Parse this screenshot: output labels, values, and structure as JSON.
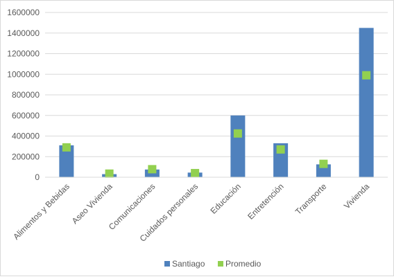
{
  "chart_data": {
    "type": "bar",
    "title": "",
    "xlabel": "",
    "ylabel": "",
    "categories": [
      "Alimentos y Bebidas",
      "Aseo Vivienda",
      "Comunicaciones",
      "Cuidados personales",
      "Educación",
      "Entretención",
      "Transporte",
      "Vivienda"
    ],
    "series": [
      {
        "name": "Santiago",
        "type": "bar",
        "color": "#4f81bd",
        "values": [
          310000,
          30000,
          75000,
          45000,
          600000,
          330000,
          125000,
          1450000
        ]
      },
      {
        "name": "Promedio",
        "type": "marker",
        "color": "#92d050",
        "values": [
          290000,
          35000,
          78000,
          40000,
          425000,
          270000,
          130000,
          990000
        ]
      }
    ],
    "ylim": [
      0,
      1600000
    ],
    "yticks": [
      "0",
      "200000",
      "400000",
      "600000",
      "800000",
      "1000000",
      "1200000",
      "1400000",
      "1600000"
    ],
    "grid": true,
    "legend": "bottom"
  }
}
